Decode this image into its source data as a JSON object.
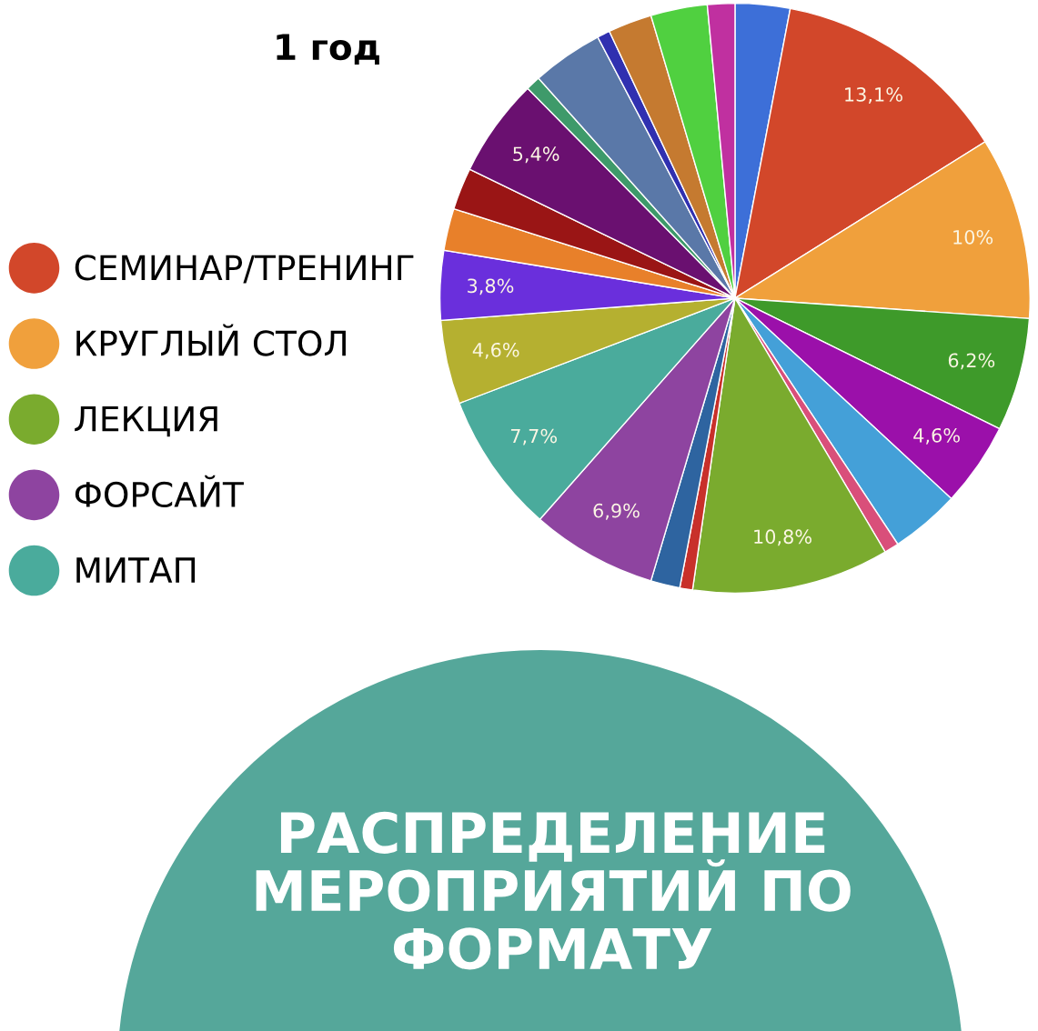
{
  "chart_data": {
    "type": "pie",
    "title": "РАСПРЕДЕЛЕНИЕ\nМЕРОПРИЯТИЙ ПО\nФОРМАТУ",
    "subtitle": "1 год",
    "categories": [
      null,
      "СЕМИНАР/ТРЕНИНГ",
      "КРУГЛЫЙ СТОЛ",
      null,
      null,
      null,
      null,
      "ЛЕКЦИЯ",
      null,
      null,
      "ФОРСАЙТ",
      "МИТАП",
      null,
      null,
      null,
      null,
      null,
      null,
      null,
      null,
      null,
      null,
      null
    ],
    "values": [
      3.0,
      13.1,
      10,
      6.2,
      4.6,
      3.8,
      0.8,
      10.8,
      0.7,
      1.6,
      6.9,
      7.7,
      4.6,
      3.8,
      2.3,
      2.3,
      5.4,
      0.8,
      3.9,
      0.7,
      2.4,
      3.1,
      1.5
    ],
    "value_labels": [
      null,
      "13,1%",
      "10%",
      "6,2%",
      "4,6%",
      null,
      null,
      "10,8%",
      null,
      null,
      "6,9%",
      "7,7%",
      "4,6%",
      "3,8%",
      null,
      null,
      "5,4%",
      null,
      null,
      null,
      null,
      null,
      null
    ],
    "colors": [
      "#3d6fd8",
      "#d2472a",
      "#f0a03c",
      "#3e9a2a",
      "#9b10aa",
      "#44a0d8",
      "#d94f7a",
      "#7aab2e",
      "#c8302a",
      "#2e64a0",
      "#8e44a0",
      "#4aab9c",
      "#b5b030",
      "#6a2fdc",
      "#e8802a",
      "#9a1515",
      "#6a1070",
      "#3e9a6a",
      "#5a78a8",
      "#3030b0",
      "#c57a30",
      "#50d040",
      "#c030a0"
    ],
    "legend": "left"
  }
}
